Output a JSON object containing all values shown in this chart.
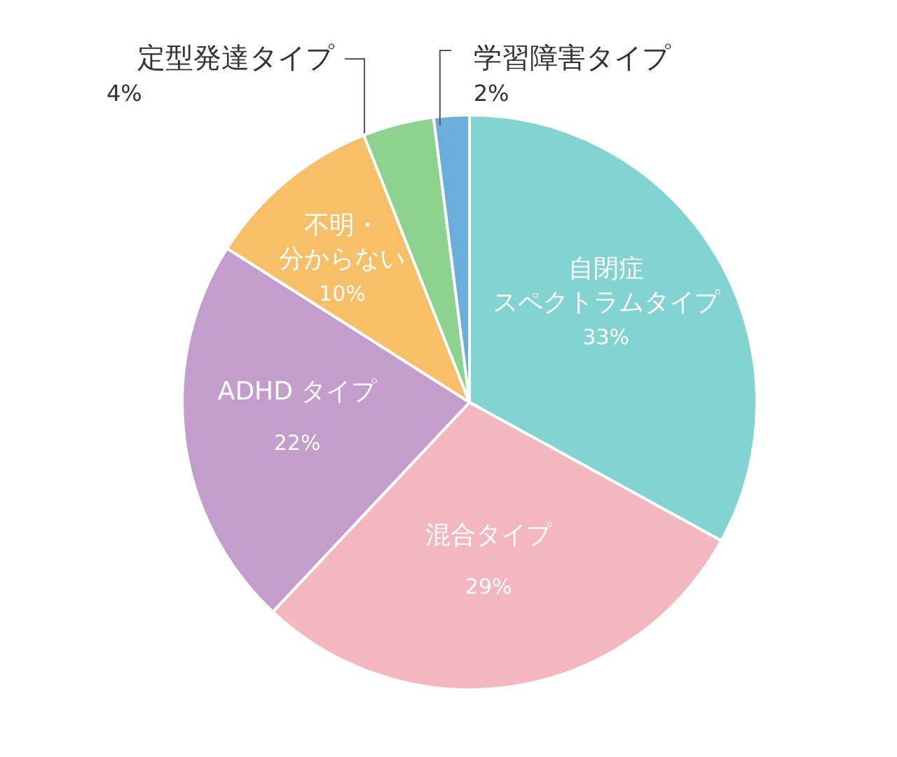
{
  "chart_data": {
    "type": "pie",
    "categories": [
      "自閉症スペクトラムタイプ",
      "混合タイプ",
      "ADHD タイプ",
      "不明・分からない",
      "定型発達タイプ",
      "学習障害タイプ"
    ],
    "value_labels": [
      "33%",
      "29%",
      "22%",
      "10%",
      "4%",
      "2%"
    ],
    "values": [
      33,
      29,
      22,
      10,
      4,
      2
    ],
    "colors": [
      "#83d3d3",
      "#f4b6bf",
      "#c39dcb",
      "#f7c068",
      "#8dd38f",
      "#6aafdc"
    ],
    "legend": false
  }
}
